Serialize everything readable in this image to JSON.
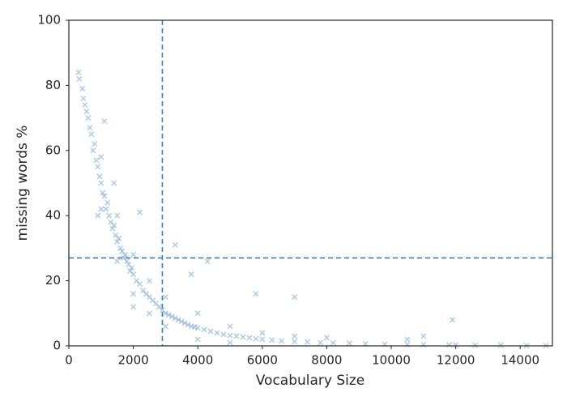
{
  "chart_data": {
    "type": "scatter",
    "x_label": "Vocabulary Size",
    "y_label": "missing words %",
    "color": "#3a7dbf",
    "marker": "x",
    "xlim": [
      0,
      15000
    ],
    "ylim": [
      0,
      100
    ],
    "xticks": [
      0,
      2000,
      4000,
      6000,
      8000,
      10000,
      12000,
      14000
    ],
    "yticks": [
      0,
      20,
      40,
      60,
      80,
      100
    ],
    "reference_lines": {
      "x": [
        2900
      ],
      "y": [
        27
      ],
      "color": "#3a7dbf",
      "style": "dashed"
    },
    "x": [
      300,
      320,
      420,
      450,
      500,
      550,
      600,
      650,
      700,
      750,
      800,
      850,
      900,
      950,
      1000,
      1050,
      1100,
      1150,
      1200,
      1250,
      1300,
      1350,
      1400,
      1450,
      1500,
      1550,
      1600,
      1650,
      1700,
      1750,
      1800,
      1850,
      1900,
      1950,
      2000,
      2100,
      2200,
      2300,
      2400,
      2500,
      2600,
      2700,
      2800,
      2900,
      3000,
      3100,
      3200,
      3300,
      3400,
      3500,
      3600,
      3700,
      3800,
      3900,
      4000,
      4200,
      4400,
      4600,
      4800,
      5000,
      5200,
      5400,
      5600,
      5800,
      6000,
      6300,
      6600,
      7000,
      7400,
      7800,
      8200,
      8700,
      9200,
      9800,
      10500,
      11000,
      11800,
      12000,
      12600,
      13400,
      14200,
      14800,
      1100,
      2200,
      3300,
      4300,
      3800,
      5800,
      7000,
      11900,
      2000,
      1400,
      900,
      1000,
      1000,
      1500,
      1500,
      2000,
      2000,
      2500,
      2500,
      3000,
      3000,
      4000,
      4000,
      5000,
      5000,
      6000,
      7000,
      8000,
      10500,
      11000
    ],
    "values": [
      84,
      82,
      79,
      76,
      74,
      72,
      70,
      67,
      65,
      60,
      62,
      57,
      55,
      52,
      50,
      47,
      46,
      42,
      44,
      40,
      38,
      36,
      37,
      34,
      32,
      33,
      30,
      29,
      27,
      28,
      26,
      25,
      23,
      24,
      22,
      20,
      19,
      17,
      16,
      15,
      14,
      13,
      12,
      11,
      10,
      9.5,
      9,
      8.5,
      8,
      7.5,
      7,
      6.5,
      6,
      5.8,
      5.5,
      5,
      4.5,
      4,
      3.5,
      3.2,
      3,
      2.7,
      2.5,
      2.2,
      2,
      1.8,
      1.5,
      1.3,
      1.2,
      1,
      0.9,
      0.8,
      0.6,
      0.5,
      0.4,
      0.4,
      0.3,
      0.3,
      0.2,
      0.2,
      0.1,
      0.1,
      69,
      41,
      31,
      26,
      22,
      16,
      15,
      8,
      12,
      50,
      40,
      58,
      42,
      40,
      26,
      28,
      16,
      20,
      10,
      15,
      6,
      10,
      2,
      6,
      1,
      4,
      3,
      2.5,
      2,
      3
    ]
  }
}
